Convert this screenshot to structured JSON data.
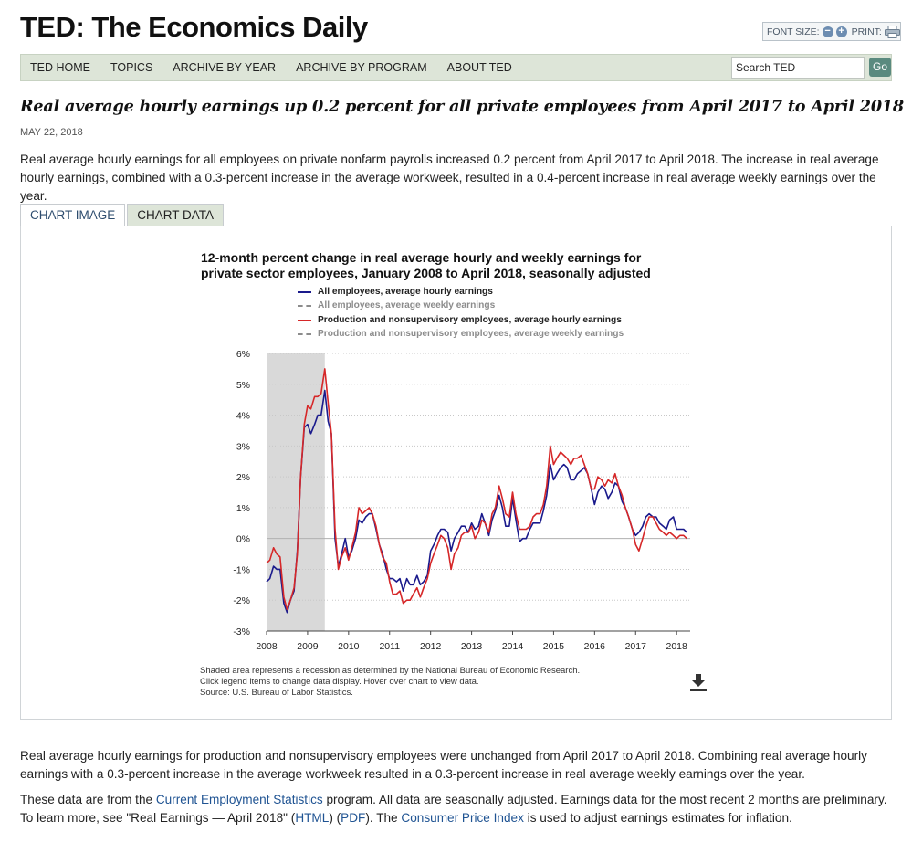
{
  "header": {
    "site_title": "TED: The Economics Daily",
    "font_size_label": "FONT SIZE:",
    "font_decrease_glyph": "−",
    "font_increase_glyph": "+",
    "print_label": "PRINT:",
    "icons": [
      "font-decrease-icon",
      "font-increase-icon",
      "printer-icon"
    ]
  },
  "nav": {
    "items": [
      "TED HOME",
      "TOPICS",
      "ARCHIVE BY YEAR",
      "ARCHIVE BY PROGRAM",
      "ABOUT TED"
    ],
    "search_value": "Search TED",
    "go_label": "Go"
  },
  "article": {
    "title": "Real average hourly earnings up 0.2 percent for all private employees from April 2017 to April 2018",
    "date": "MAY 22, 2018",
    "intro": "Real average hourly earnings for all employees on private nonfarm payrolls increased 0.2 percent from April 2017 to April 2018. The increase in real average hourly earnings, combined with a 0.3-percent increase in the average workweek, resulted in a 0.4-percent increase in real average weekly earnings over the year.",
    "para2": "Real average hourly earnings for production and nonsupervisory employees were unchanged from April 2017 to April 2018. Combining real average hourly earnings with a 0.3-percent increase in the average workweek resulted in a 0.3-percent increase in real average weekly earnings over the year.",
    "para3_before_ces": "These data are from the ",
    "ces_link": "Current Employment Statistics",
    "para3_after_ces": " program. All data are seasonally adjusted. Earnings data for the most recent 2 months are preliminary. To learn more, see \"Real Earnings — April 2018\" (",
    "html_link": "HTML",
    "para3_between": ") (",
    "pdf_link": "PDF",
    "para3_before_cpi": "). The ",
    "cpi_link": "Consumer Price Index",
    "para3_end": " is used to adjust earnings estimates for inflation.",
    "link_color": "#205493"
  },
  "tabs": {
    "items": [
      "CHART IMAGE",
      "CHART DATA"
    ],
    "active": "CHART IMAGE"
  },
  "chart_data": {
    "type": "line",
    "title_line1": "12-month percent change in real average hourly and weekly earnings for",
    "title_line2": "private sector employees, January 2008 to April 2018, seasonally adjusted",
    "xlabel": "",
    "ylabel": "",
    "y_ticks": [
      "6%",
      "5%",
      "4%",
      "3%",
      "2%",
      "1%",
      "0%",
      "-1%",
      "-2%",
      "-3%"
    ],
    "x_ticks": [
      "2008",
      "2009",
      "2010",
      "2011",
      "2012",
      "2013",
      "2014",
      "2015",
      "2016",
      "2017",
      "2018"
    ],
    "ylim": [
      -3,
      6
    ],
    "xlim": [
      2008,
      2018.33
    ],
    "grid": "horizontal dotted",
    "recession_shading": [
      2008.0,
      2009.42
    ],
    "recession_color": "#d9d9d9",
    "legend": [
      {
        "name": "All employees, average hourly earnings",
        "color": "#1a1a8c",
        "style": "solid",
        "visible": true
      },
      {
        "name": "All employees, average weekly earnings",
        "color": "#8c8c8c",
        "style": "dashed",
        "visible": false
      },
      {
        "name": "Production and nonsupervisory employees, average hourly earnings",
        "color": "#d62728",
        "style": "solid",
        "visible": true
      },
      {
        "name": "Production and nonsupervisory employees, average weekly earnings",
        "color": "#8c8c8c",
        "style": "dashed",
        "visible": false
      }
    ],
    "series": [
      {
        "name": "All employees, average hourly earnings",
        "color": "#1a1a8c",
        "x": [
          2008.0,
          2008.08,
          2008.17,
          2008.25,
          2008.33,
          2008.42,
          2008.5,
          2008.58,
          2008.67,
          2008.75,
          2008.83,
          2008.92,
          2009.0,
          2009.08,
          2009.17,
          2009.25,
          2009.33,
          2009.42,
          2009.5,
          2009.58,
          2009.67,
          2009.75,
          2009.83,
          2009.92,
          2010.0,
          2010.08,
          2010.17,
          2010.25,
          2010.33,
          2010.42,
          2010.5,
          2010.58,
          2010.67,
          2010.75,
          2010.83,
          2010.92,
          2011.0,
          2011.08,
          2011.17,
          2011.25,
          2011.33,
          2011.42,
          2011.5,
          2011.58,
          2011.67,
          2011.75,
          2011.83,
          2011.92,
          2012.0,
          2012.08,
          2012.17,
          2012.25,
          2012.33,
          2012.42,
          2012.5,
          2012.58,
          2012.67,
          2012.75,
          2012.83,
          2012.92,
          2013.0,
          2013.08,
          2013.17,
          2013.25,
          2013.33,
          2013.42,
          2013.5,
          2013.58,
          2013.67,
          2013.75,
          2013.83,
          2013.92,
          2014.0,
          2014.08,
          2014.17,
          2014.25,
          2014.33,
          2014.42,
          2014.5,
          2014.58,
          2014.67,
          2014.75,
          2014.83,
          2014.92,
          2015.0,
          2015.08,
          2015.17,
          2015.25,
          2015.33,
          2015.42,
          2015.5,
          2015.58,
          2015.67,
          2015.75,
          2015.83,
          2015.92,
          2016.0,
          2016.08,
          2016.17,
          2016.25,
          2016.33,
          2016.42,
          2016.5,
          2016.58,
          2016.67,
          2016.75,
          2016.83,
          2016.92,
          2017.0,
          2017.08,
          2017.17,
          2017.25,
          2017.33,
          2017.42,
          2017.5,
          2017.58,
          2017.67,
          2017.75,
          2017.83,
          2017.92,
          2018.0,
          2018.08,
          2018.17,
          2018.25
        ],
        "values": [
          -1.4,
          -1.3,
          -0.9,
          -1.0,
          -1.0,
          -2.1,
          -2.4,
          -2.0,
          -1.7,
          -0.4,
          2.0,
          3.6,
          3.7,
          3.4,
          3.7,
          4.0,
          4.0,
          4.8,
          3.8,
          3.4,
          0.0,
          -0.9,
          -0.5,
          0.0,
          -0.6,
          -0.4,
          0.0,
          0.6,
          0.5,
          0.7,
          0.8,
          0.8,
          0.3,
          -0.2,
          -0.5,
          -1.0,
          -1.3,
          -1.3,
          -1.4,
          -1.3,
          -1.7,
          -1.3,
          -1.5,
          -1.5,
          -1.2,
          -1.5,
          -1.4,
          -1.2,
          -0.4,
          -0.2,
          0.1,
          0.3,
          0.3,
          0.2,
          -0.4,
          0.0,
          0.2,
          0.4,
          0.4,
          0.2,
          0.5,
          0.3,
          0.4,
          0.8,
          0.5,
          0.1,
          0.6,
          0.9,
          1.4,
          1.0,
          0.4,
          0.4,
          1.3,
          0.6,
          -0.1,
          0.0,
          0.0,
          0.3,
          0.5,
          0.5,
          0.5,
          0.9,
          1.4,
          2.4,
          1.9,
          2.1,
          2.3,
          2.4,
          2.3,
          1.9,
          1.9,
          2.1,
          2.2,
          2.3,
          2.1,
          1.6,
          1.1,
          1.5,
          1.7,
          1.6,
          1.3,
          1.5,
          1.8,
          1.7,
          1.2,
          1.0,
          0.7,
          0.3,
          0.1,
          0.2,
          0.4,
          0.7,
          0.8,
          0.7,
          0.7,
          0.5,
          0.4,
          0.3,
          0.6,
          0.7,
          0.3,
          0.3,
          0.3,
          0.2
        ]
      },
      {
        "name": "Production and nonsupervisory employees, average hourly earnings",
        "color": "#d62728",
        "x": [
          2008.0,
          2008.08,
          2008.17,
          2008.25,
          2008.33,
          2008.42,
          2008.5,
          2008.58,
          2008.67,
          2008.75,
          2008.83,
          2008.92,
          2009.0,
          2009.08,
          2009.17,
          2009.25,
          2009.33,
          2009.42,
          2009.5,
          2009.58,
          2009.67,
          2009.75,
          2009.83,
          2009.92,
          2010.0,
          2010.08,
          2010.17,
          2010.25,
          2010.33,
          2010.42,
          2010.5,
          2010.58,
          2010.67,
          2010.75,
          2010.83,
          2010.92,
          2011.0,
          2011.08,
          2011.17,
          2011.25,
          2011.33,
          2011.42,
          2011.5,
          2011.58,
          2011.67,
          2011.75,
          2011.83,
          2011.92,
          2012.0,
          2012.08,
          2012.17,
          2012.25,
          2012.33,
          2012.42,
          2012.5,
          2012.58,
          2012.67,
          2012.75,
          2012.83,
          2012.92,
          2013.0,
          2013.08,
          2013.17,
          2013.25,
          2013.33,
          2013.42,
          2013.5,
          2013.58,
          2013.67,
          2013.75,
          2013.83,
          2013.92,
          2014.0,
          2014.08,
          2014.17,
          2014.25,
          2014.33,
          2014.42,
          2014.5,
          2014.58,
          2014.67,
          2014.75,
          2014.83,
          2014.92,
          2015.0,
          2015.08,
          2015.17,
          2015.25,
          2015.33,
          2015.42,
          2015.5,
          2015.58,
          2015.67,
          2015.75,
          2015.83,
          2015.92,
          2016.0,
          2016.08,
          2016.17,
          2016.25,
          2016.33,
          2016.42,
          2016.5,
          2016.58,
          2016.67,
          2016.75,
          2016.83,
          2016.92,
          2017.0,
          2017.08,
          2017.17,
          2017.25,
          2017.33,
          2017.42,
          2017.5,
          2017.58,
          2017.67,
          2017.75,
          2017.83,
          2017.92,
          2018.0,
          2018.08,
          2018.17,
          2018.25
        ],
        "values": [
          -0.8,
          -0.7,
          -0.3,
          -0.5,
          -0.6,
          -1.9,
          -2.3,
          -2.0,
          -1.6,
          -0.5,
          2.0,
          3.7,
          4.3,
          4.2,
          4.6,
          4.6,
          4.7,
          5.5,
          4.4,
          3.4,
          0.3,
          -1.0,
          -0.6,
          -0.3,
          -0.7,
          -0.3,
          0.2,
          1.0,
          0.8,
          0.9,
          1.0,
          0.8,
          0.4,
          -0.2,
          -0.6,
          -0.8,
          -1.4,
          -1.8,
          -1.8,
          -1.7,
          -2.1,
          -2.0,
          -2.0,
          -1.8,
          -1.6,
          -1.9,
          -1.6,
          -1.3,
          -0.8,
          -0.5,
          -0.2,
          0.1,
          0.0,
          -0.3,
          -1.0,
          -0.5,
          -0.3,
          0.1,
          0.2,
          0.2,
          0.4,
          0.0,
          0.2,
          0.6,
          0.5,
          0.2,
          0.8,
          1.0,
          1.7,
          1.3,
          0.8,
          0.7,
          1.5,
          0.8,
          0.3,
          0.3,
          0.3,
          0.4,
          0.7,
          0.8,
          0.8,
          1.1,
          1.7,
          3.0,
          2.4,
          2.6,
          2.8,
          2.7,
          2.6,
          2.4,
          2.6,
          2.6,
          2.7,
          2.4,
          2.1,
          1.6,
          1.6,
          2.0,
          1.9,
          1.7,
          1.9,
          1.8,
          2.1,
          1.7,
          1.4,
          1.0,
          0.7,
          0.3,
          -0.2,
          -0.4,
          0.0,
          0.4,
          0.7,
          0.7,
          0.5,
          0.3,
          0.2,
          0.1,
          0.2,
          0.1,
          0.0,
          0.1,
          0.1,
          0.0
        ]
      }
    ]
  },
  "chart_footer": {
    "note1": "Shaded area represents a recession as determined by the National Bureau of Economic Research.",
    "note2": "Click legend items to change data display. Hover over chart to view data.",
    "source": "Source: U.S. Bureau of Labor Statistics."
  }
}
